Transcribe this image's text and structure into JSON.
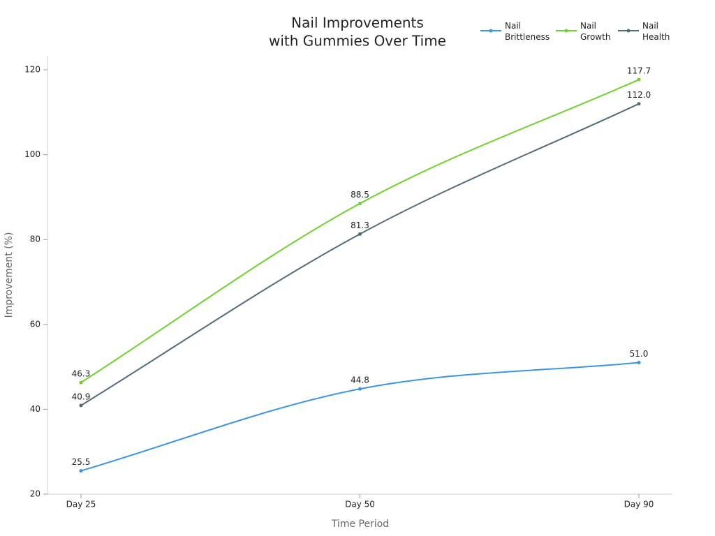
{
  "chart_data": {
    "type": "line",
    "title": [
      "Nail Improvements",
      "with Gummies Over Time"
    ],
    "x_label": "Time Period",
    "y_label": "Improvement (%)",
    "categories": [
      "Day 25",
      "Day 50",
      "Day 90"
    ],
    "series": [
      {
        "name": "Nail Brittleness",
        "color": "#3b94e0",
        "values": [
          25.5,
          44.8,
          51.0
        ],
        "value_labels": [
          "25.5",
          "44.8",
          "51.0"
        ]
      },
      {
        "name": "Nail Growth",
        "color": "#6fd12e",
        "values": [
          46.3,
          88.5,
          117.7
        ],
        "value_labels": [
          "46.3",
          "88.5",
          "117.7"
        ]
      },
      {
        "name": "Nail Health",
        "color": "#526b78",
        "values": [
          40.9,
          81.3,
          112.0
        ],
        "value_labels": [
          "40.9",
          "81.3",
          "112.0"
        ]
      }
    ],
    "ylim": [
      20,
      123.3
    ],
    "yticks": [
      20,
      40,
      60,
      80,
      100,
      120
    ],
    "legend": "top-right",
    "grid": false
  }
}
